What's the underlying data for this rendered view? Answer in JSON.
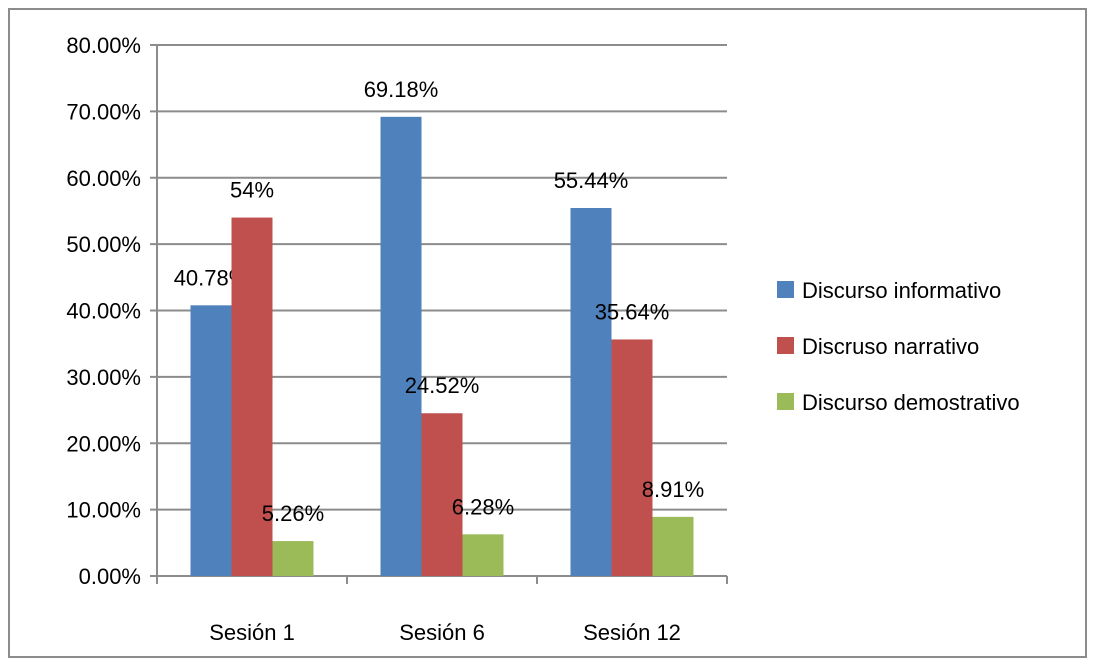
{
  "chart_data": {
    "type": "bar",
    "categories": [
      "Sesión 1",
      "Sesión 6",
      "Sesión 12"
    ],
    "series": [
      {
        "name": "Discurso informativo",
        "values": [
          40.78,
          69.18,
          55.44
        ],
        "labels": [
          "40.78%",
          "69.18%",
          "55.44%"
        ],
        "color": "#4f81bd"
      },
      {
        "name": "Discruso narrativo",
        "values": [
          54,
          24.52,
          35.64
        ],
        "labels": [
          "54%",
          "24.52%",
          "35.64%"
        ],
        "color": "#c0504d"
      },
      {
        "name": "Discurso demostrativo",
        "values": [
          5.26,
          6.28,
          8.91
        ],
        "labels": [
          "5.26%",
          "6.28%",
          "8.91%"
        ],
        "color": "#9bbb59"
      }
    ],
    "ylim": [
      0,
      80
    ],
    "yticks": [
      "0.00%",
      "10.00%",
      "20.00%",
      "30.00%",
      "40.00%",
      "50.00%",
      "60.00%",
      "70.00%",
      "80.00%"
    ],
    "grid": true,
    "legend": "right",
    "title": "",
    "xlabel": "",
    "ylabel": ""
  }
}
